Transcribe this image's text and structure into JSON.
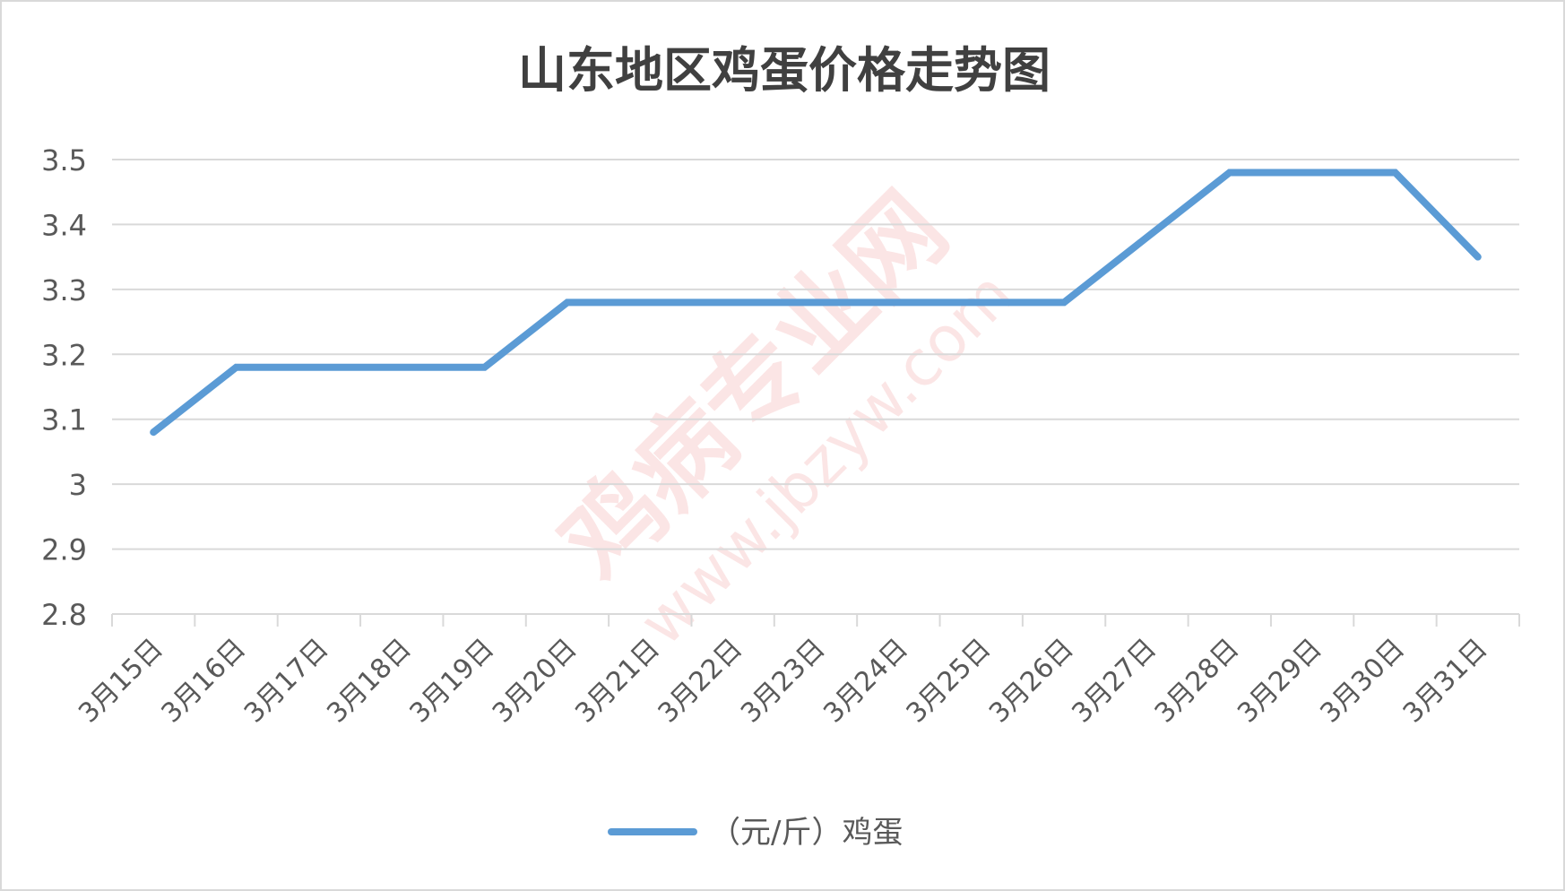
{
  "chart_data": {
    "type": "line",
    "title": "山东地区鸡蛋价格走势图",
    "categories": [
      "3月15日",
      "3月16日",
      "3月17日",
      "3月18日",
      "3月19日",
      "3月20日",
      "3月21日",
      "3月22日",
      "3月23日",
      "3月24日",
      "3月25日",
      "3月26日",
      "3月27日",
      "3月28日",
      "3月29日",
      "3月30日",
      "3月31日"
    ],
    "series": [
      {
        "name": "（元/斤）鸡蛋",
        "color": "#5b9bd5",
        "values": [
          3.08,
          3.18,
          3.18,
          3.18,
          3.18,
          3.28,
          3.28,
          3.28,
          3.28,
          3.28,
          3.28,
          3.28,
          3.38,
          3.48,
          3.48,
          3.48,
          3.35
        ]
      }
    ],
    "ylim": [
      2.8,
      3.5
    ],
    "yticks": [
      "2.8",
      "2.9",
      "3",
      "3.1",
      "3.2",
      "3.3",
      "3.4",
      "3.5"
    ],
    "xlabel": "",
    "ylabel": "",
    "grid": true,
    "legend": "bottom"
  },
  "watermark": {
    "text": "鸡病专业网",
    "url": "www.jbzyw.com"
  }
}
